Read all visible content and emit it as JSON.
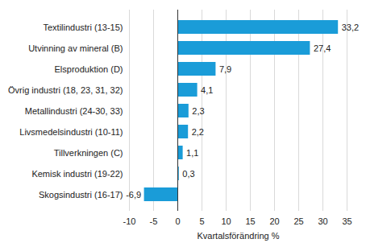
{
  "chart_data": {
    "type": "bar",
    "orientation": "horizontal",
    "categories": [
      "Textilindustri (13-15)",
      "Utvinning av mineral (B)",
      "Elsproduktion (D)",
      "Övrig industri (18, 23, 31, 32)",
      "Metallindustri (24-30, 33)",
      "Livsmedelsindustri (10-11)",
      "Tillverkningen (C)",
      "Kemisk industri (19-22)",
      "Skogsindustri (16-17)"
    ],
    "values": [
      33.2,
      27.4,
      7.9,
      4.1,
      2.3,
      2.2,
      1.1,
      0.3,
      -6.9
    ],
    "value_labels": [
      "33,2",
      "27,4",
      "7,9",
      "4,1",
      "2,3",
      "2,2",
      "1,1",
      "0,3",
      "-6,9"
    ],
    "data_labels": true,
    "color": "#1a9cd8",
    "x_label": "Kvartalsförändring %",
    "xlim": [
      -10,
      35
    ],
    "xticks": [
      -10,
      -5,
      0,
      5,
      10,
      15,
      20,
      25,
      30,
      35
    ],
    "grid": true
  }
}
